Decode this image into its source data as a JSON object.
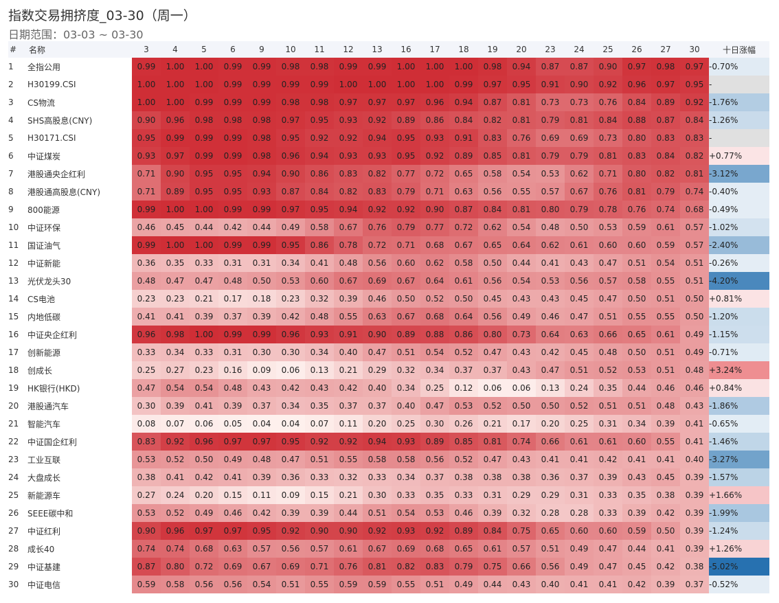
{
  "title": "指数交易拥挤度_03-30（周一）",
  "subtitle": "日期范围：03-03 ~ 03-30",
  "chart_data": {
    "type": "heatmap",
    "headers": {
      "index": "#",
      "name": "名称",
      "change": "十日涨幅"
    },
    "columns": [
      "3",
      "4",
      "5",
      "6",
      "9",
      "10",
      "11",
      "12",
      "13",
      "16",
      "17",
      "18",
      "19",
      "20",
      "23",
      "24",
      "25",
      "26",
      "27",
      "30"
    ],
    "rows": [
      {
        "n": "1",
        "name": "全指公用",
        "values": [
          0.99,
          1.0,
          1.0,
          0.99,
          0.99,
          0.98,
          0.98,
          0.99,
          0.99,
          1.0,
          1.0,
          1.0,
          0.98,
          0.94,
          0.87,
          0.87,
          0.9,
          0.97,
          0.98,
          0.97
        ],
        "change": "-0.70%"
      },
      {
        "n": "2",
        "name": "H30199.CSI",
        "values": [
          1.0,
          1.0,
          1.0,
          0.99,
          0.99,
          0.99,
          0.99,
          1.0,
          1.0,
          1.0,
          1.0,
          0.99,
          0.97,
          0.95,
          0.91,
          0.9,
          0.92,
          0.96,
          0.97,
          0.95
        ],
        "change": "-"
      },
      {
        "n": "3",
        "name": "CS物流",
        "values": [
          1.0,
          1.0,
          0.99,
          0.99,
          0.99,
          0.98,
          0.98,
          0.97,
          0.97,
          0.97,
          0.96,
          0.94,
          0.87,
          0.81,
          0.73,
          0.73,
          0.76,
          0.84,
          0.89,
          0.92
        ],
        "change": "-1.76%"
      },
      {
        "n": "4",
        "name": "SHS高股息(CNY)",
        "values": [
          0.9,
          0.96,
          0.98,
          0.98,
          0.98,
          0.97,
          0.95,
          0.93,
          0.92,
          0.89,
          0.86,
          0.84,
          0.82,
          0.81,
          0.79,
          0.81,
          0.84,
          0.88,
          0.87,
          0.84
        ],
        "change": "-1.26%"
      },
      {
        "n": "5",
        "name": "H30171.CSI",
        "values": [
          0.95,
          0.99,
          0.99,
          0.99,
          0.98,
          0.95,
          0.92,
          0.92,
          0.94,
          0.95,
          0.93,
          0.91,
          0.83,
          0.76,
          0.69,
          0.69,
          0.73,
          0.8,
          0.83,
          0.83
        ],
        "change": "-"
      },
      {
        "n": "6",
        "name": "中证煤炭",
        "values": [
          0.93,
          0.97,
          0.99,
          0.99,
          0.98,
          0.96,
          0.94,
          0.93,
          0.93,
          0.95,
          0.92,
          0.89,
          0.85,
          0.81,
          0.79,
          0.79,
          0.81,
          0.83,
          0.84,
          0.82
        ],
        "change": "+0.77%"
      },
      {
        "n": "7",
        "name": "港股通央企红利",
        "values": [
          0.71,
          0.9,
          0.95,
          0.95,
          0.94,
          0.9,
          0.86,
          0.83,
          0.82,
          0.77,
          0.72,
          0.65,
          0.58,
          0.54,
          0.53,
          0.62,
          0.71,
          0.8,
          0.82,
          0.81
        ],
        "change": "-3.12%"
      },
      {
        "n": "8",
        "name": "港股通高股息(CNY)",
        "values": [
          0.71,
          0.89,
          0.95,
          0.95,
          0.93,
          0.87,
          0.84,
          0.82,
          0.83,
          0.79,
          0.71,
          0.63,
          0.56,
          0.55,
          0.57,
          0.67,
          0.76,
          0.81,
          0.79,
          0.74
        ],
        "change": "-0.40%"
      },
      {
        "n": "9",
        "name": "800能源",
        "values": [
          0.99,
          1.0,
          1.0,
          0.99,
          0.99,
          0.97,
          0.95,
          0.94,
          0.92,
          0.92,
          0.9,
          0.87,
          0.84,
          0.81,
          0.8,
          0.79,
          0.78,
          0.76,
          0.74,
          0.68
        ],
        "change": "-0.49%"
      },
      {
        "n": "10",
        "name": "中证环保",
        "values": [
          0.46,
          0.45,
          0.44,
          0.42,
          0.44,
          0.49,
          0.58,
          0.67,
          0.76,
          0.79,
          0.77,
          0.72,
          0.62,
          0.54,
          0.48,
          0.5,
          0.53,
          0.59,
          0.61,
          0.57
        ],
        "change": "-1.02%"
      },
      {
        "n": "11",
        "name": "国证油气",
        "values": [
          0.99,
          1.0,
          1.0,
          0.99,
          0.99,
          0.95,
          0.86,
          0.78,
          0.72,
          0.71,
          0.68,
          0.67,
          0.65,
          0.64,
          0.62,
          0.61,
          0.6,
          0.6,
          0.59,
          0.57
        ],
        "change": "-2.40%"
      },
      {
        "n": "12",
        "name": "中证新能",
        "values": [
          0.36,
          0.35,
          0.33,
          0.31,
          0.31,
          0.34,
          0.41,
          0.48,
          0.56,
          0.6,
          0.62,
          0.58,
          0.5,
          0.44,
          0.41,
          0.43,
          0.47,
          0.51,
          0.54,
          0.51
        ],
        "change": "-0.26%"
      },
      {
        "n": "13",
        "name": "光伏龙头30",
        "values": [
          0.48,
          0.47,
          0.47,
          0.48,
          0.5,
          0.53,
          0.6,
          0.67,
          0.69,
          0.67,
          0.64,
          0.61,
          0.56,
          0.54,
          0.53,
          0.56,
          0.57,
          0.58,
          0.55,
          0.51
        ],
        "change": "-4.20%"
      },
      {
        "n": "14",
        "name": "CS电池",
        "values": [
          0.23,
          0.23,
          0.21,
          0.17,
          0.18,
          0.23,
          0.32,
          0.39,
          0.46,
          0.5,
          0.52,
          0.5,
          0.45,
          0.43,
          0.43,
          0.45,
          0.47,
          0.5,
          0.51,
          0.5
        ],
        "change": "+0.81%"
      },
      {
        "n": "15",
        "name": "内地低碳",
        "values": [
          0.41,
          0.41,
          0.39,
          0.37,
          0.39,
          0.42,
          0.48,
          0.55,
          0.63,
          0.67,
          0.68,
          0.64,
          0.56,
          0.49,
          0.46,
          0.47,
          0.51,
          0.55,
          0.55,
          0.5
        ],
        "change": "-1.20%"
      },
      {
        "n": "16",
        "name": "中证央企红利",
        "values": [
          0.96,
          0.98,
          1.0,
          0.99,
          0.99,
          0.96,
          0.93,
          0.91,
          0.9,
          0.89,
          0.88,
          0.86,
          0.8,
          0.73,
          0.64,
          0.63,
          0.66,
          0.65,
          0.61,
          0.49
        ],
        "change": "-1.15%"
      },
      {
        "n": "17",
        "name": "创新能源",
        "values": [
          0.33,
          0.34,
          0.33,
          0.31,
          0.3,
          0.3,
          0.34,
          0.4,
          0.47,
          0.51,
          0.54,
          0.52,
          0.47,
          0.43,
          0.42,
          0.45,
          0.48,
          0.5,
          0.51,
          0.49
        ],
        "change": "-0.71%"
      },
      {
        "n": "18",
        "name": "创成长",
        "values": [
          0.25,
          0.27,
          0.23,
          0.16,
          0.09,
          0.06,
          0.13,
          0.21,
          0.29,
          0.32,
          0.34,
          0.37,
          0.37,
          0.43,
          0.47,
          0.51,
          0.52,
          0.53,
          0.51,
          0.48
        ],
        "change": "+3.24%"
      },
      {
        "n": "19",
        "name": "HK银行(HKD)",
        "values": [
          0.47,
          0.54,
          0.54,
          0.48,
          0.43,
          0.42,
          0.43,
          0.42,
          0.4,
          0.34,
          0.25,
          0.12,
          0.06,
          0.06,
          0.13,
          0.24,
          0.35,
          0.44,
          0.46,
          0.46
        ],
        "change": "+0.84%"
      },
      {
        "n": "20",
        "name": "港股通汽车",
        "values": [
          0.3,
          0.39,
          0.41,
          0.39,
          0.37,
          0.34,
          0.35,
          0.37,
          0.37,
          0.4,
          0.47,
          0.53,
          0.52,
          0.5,
          0.5,
          0.52,
          0.51,
          0.51,
          0.48,
          0.43
        ],
        "change": "-1.86%"
      },
      {
        "n": "21",
        "name": "智能汽车",
        "values": [
          0.08,
          0.07,
          0.06,
          0.05,
          0.04,
          0.04,
          0.07,
          0.11,
          0.2,
          0.25,
          0.3,
          0.26,
          0.21,
          0.17,
          0.2,
          0.25,
          0.31,
          0.34,
          0.39,
          0.41
        ],
        "change": "-0.65%"
      },
      {
        "n": "22",
        "name": "中证国企红利",
        "values": [
          0.83,
          0.92,
          0.96,
          0.97,
          0.97,
          0.95,
          0.92,
          0.92,
          0.94,
          0.93,
          0.89,
          0.85,
          0.81,
          0.74,
          0.66,
          0.61,
          0.61,
          0.6,
          0.55,
          0.41
        ],
        "change": "-1.46%"
      },
      {
        "n": "23",
        "name": "工业互联",
        "values": [
          0.53,
          0.52,
          0.5,
          0.49,
          0.48,
          0.47,
          0.51,
          0.55,
          0.58,
          0.58,
          0.56,
          0.52,
          0.47,
          0.43,
          0.41,
          0.41,
          0.42,
          0.41,
          0.41,
          0.4
        ],
        "change": "-3.27%"
      },
      {
        "n": "24",
        "name": "大盘成长",
        "values": [
          0.38,
          0.41,
          0.42,
          0.41,
          0.39,
          0.36,
          0.33,
          0.32,
          0.33,
          0.34,
          0.37,
          0.38,
          0.38,
          0.38,
          0.36,
          0.37,
          0.39,
          0.43,
          0.45,
          0.39
        ],
        "change": "-1.57%"
      },
      {
        "n": "25",
        "name": "新能源车",
        "values": [
          0.27,
          0.24,
          0.2,
          0.15,
          0.11,
          0.09,
          0.15,
          0.21,
          0.3,
          0.33,
          0.35,
          0.33,
          0.31,
          0.29,
          0.29,
          0.31,
          0.33,
          0.35,
          0.38,
          0.39
        ],
        "change": "+1.66%"
      },
      {
        "n": "26",
        "name": "SEEE碳中和",
        "values": [
          0.53,
          0.52,
          0.49,
          0.46,
          0.42,
          0.39,
          0.39,
          0.44,
          0.51,
          0.54,
          0.53,
          0.46,
          0.39,
          0.32,
          0.28,
          0.28,
          0.33,
          0.39,
          0.42,
          0.39
        ],
        "change": "-1.99%"
      },
      {
        "n": "27",
        "name": "中证红利",
        "values": [
          0.9,
          0.96,
          0.97,
          0.97,
          0.95,
          0.92,
          0.9,
          0.9,
          0.92,
          0.93,
          0.92,
          0.89,
          0.84,
          0.75,
          0.65,
          0.6,
          0.6,
          0.59,
          0.5,
          0.39
        ],
        "change": "-1.24%"
      },
      {
        "n": "28",
        "name": "成长40",
        "values": [
          0.74,
          0.74,
          0.68,
          0.63,
          0.57,
          0.56,
          0.57,
          0.61,
          0.67,
          0.69,
          0.68,
          0.65,
          0.61,
          0.57,
          0.51,
          0.49,
          0.47,
          0.44,
          0.41,
          0.39
        ],
        "change": "+1.26%"
      },
      {
        "n": "29",
        "name": "中证基建",
        "values": [
          0.87,
          0.8,
          0.72,
          0.69,
          0.67,
          0.69,
          0.71,
          0.76,
          0.81,
          0.82,
          0.83,
          0.79,
          0.75,
          0.66,
          0.56,
          0.49,
          0.47,
          0.45,
          0.42,
          0.38
        ],
        "change": "-5.02%"
      },
      {
        "n": "30",
        "name": "中证电信",
        "values": [
          0.59,
          0.58,
          0.56,
          0.56,
          0.54,
          0.51,
          0.55,
          0.59,
          0.59,
          0.55,
          0.51,
          0.49,
          0.44,
          0.43,
          0.4,
          0.41,
          0.41,
          0.42,
          0.39,
          0.37
        ],
        "change": "-0.52%"
      }
    ],
    "colors": {
      "high": "#cf2e36",
      "low": "#fff5f2",
      "positive": "#e34a4f",
      "negative": "#1f6cad",
      "neutral": "#e0e0e0"
    }
  }
}
